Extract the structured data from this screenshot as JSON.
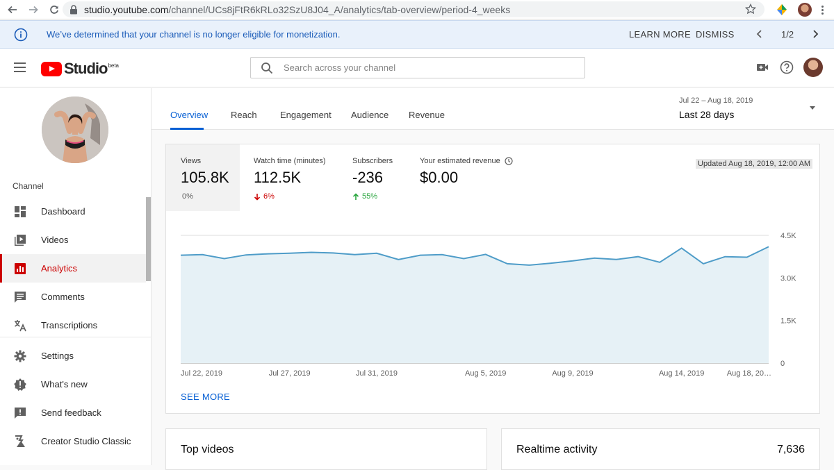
{
  "browser": {
    "url_host": "studio.youtube.com",
    "url_path": "/channel/UCs8jFtR6kRLo32SzU8J04_A/analytics/tab-overview/period-4_weeks"
  },
  "notice": {
    "message": "We’ve determined that your channel is no longer eligible for monetization.",
    "learn_more": "LEARN MORE",
    "dismiss": "DISMISS",
    "pager": "1/2"
  },
  "header": {
    "logo_text": "Studio",
    "logo_badge": "beta",
    "search_placeholder": "Search across your channel"
  },
  "sidebar": {
    "section_label": "Channel",
    "items": [
      {
        "label": "Dashboard",
        "icon": "dashboard-icon"
      },
      {
        "label": "Videos",
        "icon": "videos-icon"
      },
      {
        "label": "Analytics",
        "icon": "analytics-icon",
        "active": true
      },
      {
        "label": "Comments",
        "icon": "comments-icon"
      },
      {
        "label": "Transcriptions",
        "icon": "transcriptions-icon"
      }
    ],
    "bottom_items": [
      {
        "label": "Settings",
        "icon": "gear-icon"
      },
      {
        "label": "What's new",
        "icon": "whats-new-icon"
      },
      {
        "label": "Send feedback",
        "icon": "feedback-icon"
      },
      {
        "label": "Creator Studio Classic",
        "icon": "classic-studio-icon"
      }
    ]
  },
  "tabs": [
    {
      "label": "Overview",
      "active": true
    },
    {
      "label": "Reach"
    },
    {
      "label": "Engagement"
    },
    {
      "label": "Audience"
    },
    {
      "label": "Revenue"
    }
  ],
  "date_range": {
    "dates": "Jul 22 – Aug 18, 2019",
    "label": "Last 28 days"
  },
  "metrics": [
    {
      "label": "Views",
      "value": "105.8K",
      "change": "0%",
      "direction": "flat"
    },
    {
      "label": "Watch time (minutes)",
      "value": "112.5K",
      "change": "6%",
      "direction": "down"
    },
    {
      "label": "Subscribers",
      "value": "-236",
      "change": "55%",
      "direction": "up"
    },
    {
      "label": "Your estimated revenue",
      "value": "$0.00",
      "change": "",
      "direction": "none"
    }
  ],
  "updated": "Updated Aug 18, 2019, 12:00 AM",
  "see_more": "SEE MORE",
  "chart_data": {
    "type": "area",
    "x": [
      "Jul 22",
      "Jul 23",
      "Jul 24",
      "Jul 25",
      "Jul 26",
      "Jul 27",
      "Jul 28",
      "Jul 29",
      "Jul 30",
      "Jul 31",
      "Aug 1",
      "Aug 2",
      "Aug 3",
      "Aug 4",
      "Aug 5",
      "Aug 6",
      "Aug 7",
      "Aug 8",
      "Aug 9",
      "Aug 10",
      "Aug 11",
      "Aug 12",
      "Aug 13",
      "Aug 14",
      "Aug 15",
      "Aug 16",
      "Aug 17",
      "Aug 18"
    ],
    "series": [
      {
        "values": [
          3800,
          3820,
          3680,
          3810,
          3850,
          3870,
          3900,
          3880,
          3820,
          3870,
          3650,
          3800,
          3820,
          3680,
          3830,
          3500,
          3450,
          3520,
          3600,
          3700,
          3650,
          3750,
          3550,
          4050,
          3500,
          3750,
          3730,
          4100
        ]
      }
    ],
    "x_tick_labels": [
      "Jul 22, 2019",
      "Jul 27, 2019",
      "Jul 31, 2019",
      "Aug 5, 2019",
      "Aug 9, 2019",
      "Aug 14, 2019",
      "Aug 18, 20…"
    ],
    "y_tick_labels": [
      "0",
      "1.5K",
      "3.0K",
      "4.5K"
    ],
    "y_ticks": [
      0,
      1500,
      3000,
      4500
    ],
    "ylim": [
      0,
      4500
    ],
    "grid": true,
    "colors": {
      "line": "#4e9cc8",
      "fill": "#e6f1f6",
      "grid": "#dcdcdc"
    }
  },
  "bottom_cards": {
    "top_videos_title": "Top videos",
    "realtime_title": "Realtime activity",
    "realtime_value": "7,636"
  }
}
